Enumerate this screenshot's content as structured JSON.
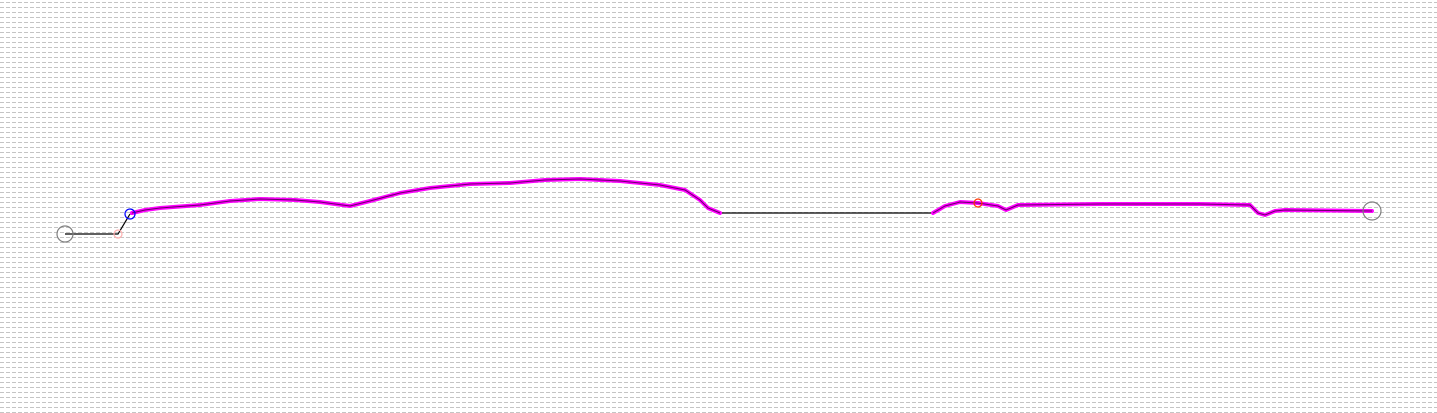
{
  "map": {
    "background_pattern": "dashed-grid",
    "background_color": "#ffffff",
    "grid_color": "#c4c4c4",
    "track_color": "#ff00ff",
    "connector_color": "#000000",
    "markers": [
      {
        "name": "start-marker",
        "color": "#808080"
      },
      {
        "name": "waypoint-marker-blue",
        "color": "#0000ff"
      },
      {
        "name": "waypoint-marker-pink",
        "color": "#ffb0b0"
      },
      {
        "name": "waypoint-marker-orange",
        "color": "#ff3300"
      },
      {
        "name": "end-marker",
        "color": "#808080"
      }
    ]
  }
}
